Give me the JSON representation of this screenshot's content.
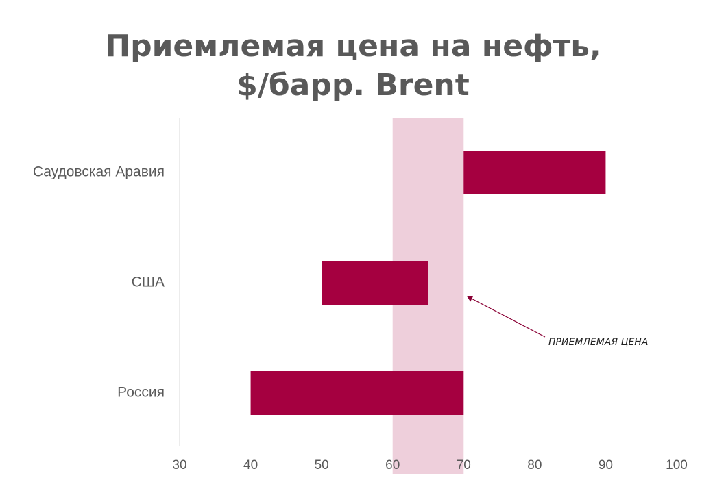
{
  "chart_data": {
    "type": "bar",
    "title": [
      "Приемлемая цена на нефть,",
      "$/барр. Brent"
    ],
    "categories": [
      "Саудовская Аравия",
      "США",
      "Россия"
    ],
    "starts": [
      70,
      50,
      40
    ],
    "ends": [
      90,
      65,
      70
    ],
    "color": "#a50040",
    "band": {
      "from": 60,
      "to": 70,
      "label": "ПРИЕМЛЕМАЯ ЦЕНА",
      "color": "#eecfdb"
    },
    "xlim": [
      30,
      100
    ],
    "xticks": [
      30,
      40,
      50,
      60,
      70,
      80,
      90,
      100
    ],
    "grid": false
  }
}
